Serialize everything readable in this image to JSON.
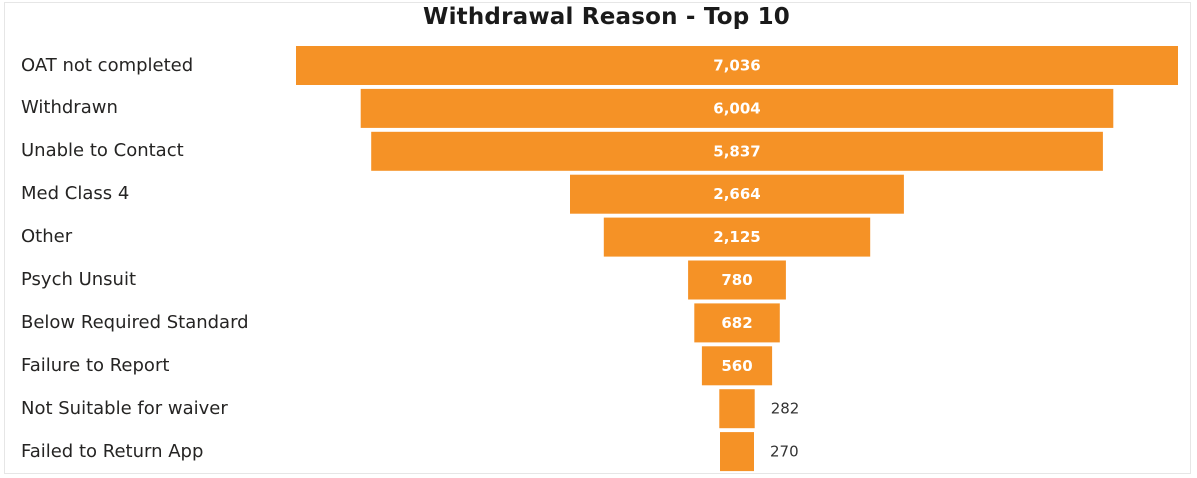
{
  "chart_data": {
    "type": "bar",
    "subtype": "funnel",
    "title": "Withdrawal Reason - Top 10",
    "categories": [
      "OAT not completed",
      "Withdrawn",
      "Unable to Contact",
      "Med Class 4",
      "Other",
      "Psych Unsuit",
      "Below Required Standard",
      "Failure to Report",
      "Not Suitable for waiver",
      "Failed to Return App"
    ],
    "values": [
      7036,
      6004,
      5837,
      2664,
      2125,
      780,
      682,
      560,
      282,
      270
    ],
    "value_labels": [
      "7,036",
      "6,004",
      "5,837",
      "2,664",
      "2,125",
      "780",
      "682",
      "560",
      "282",
      "270"
    ],
    "bar_color": "#f59226",
    "legend": "none",
    "grid": false
  }
}
